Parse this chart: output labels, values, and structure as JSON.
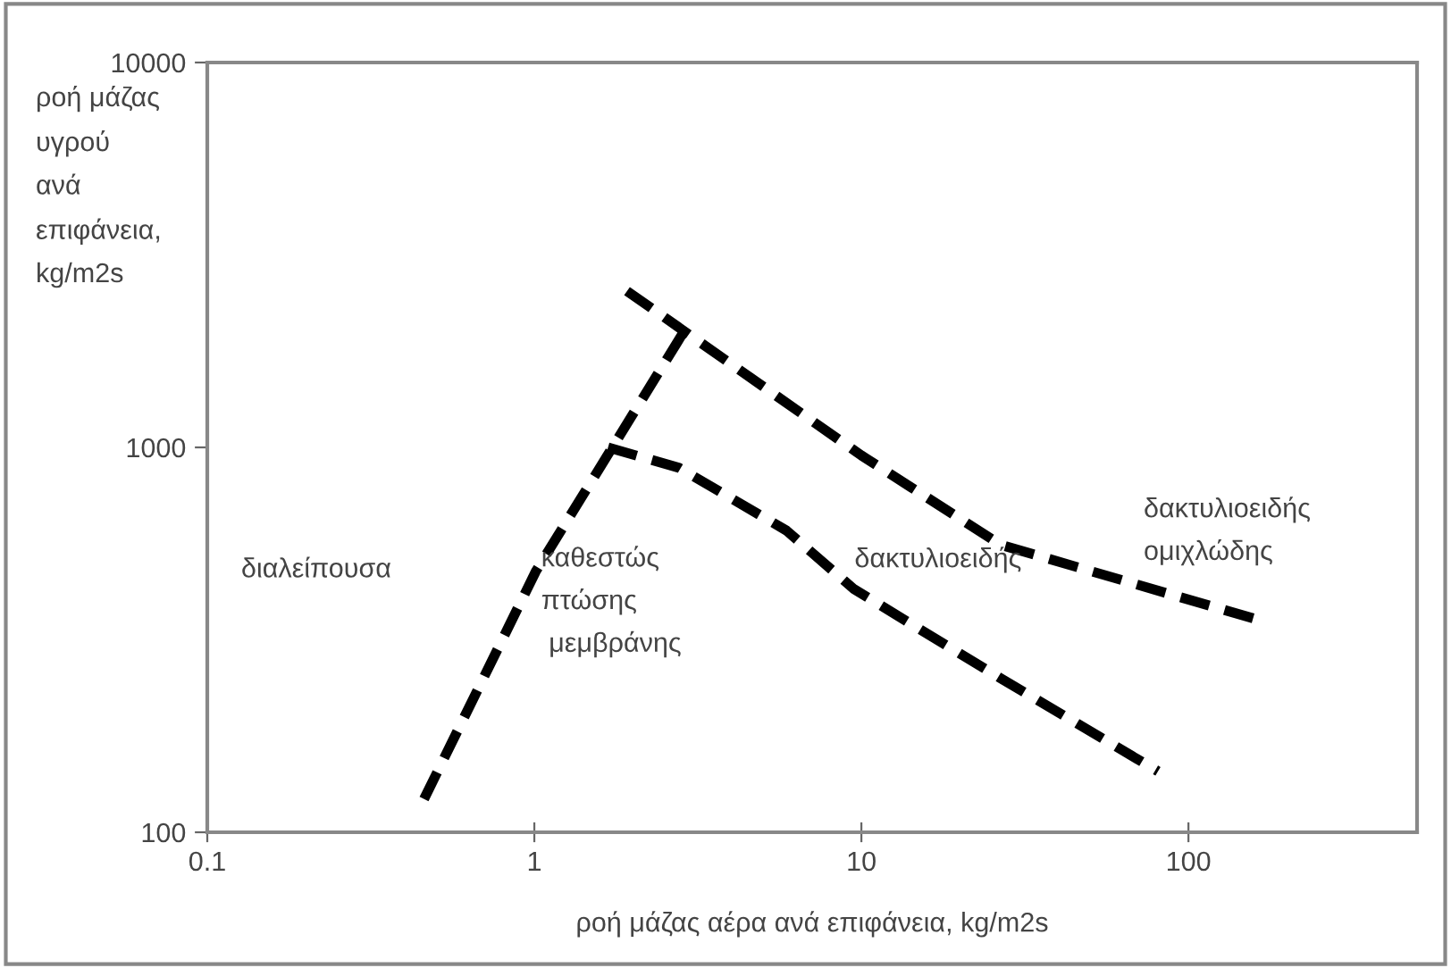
{
  "chart_data": {
    "type": "line",
    "xlabel": "ροή μάζας αέρα ανά επιφάνεια, kg/m2s",
    "ylabel": "ροή μάζας\nυγρού\nανά\nεπιφάνεια,\nkg/m2s",
    "log": "xy",
    "xlim": [
      0.1,
      500
    ],
    "xticks": [
      0.1,
      1,
      10,
      100
    ],
    "ylim": [
      100,
      10000
    ],
    "yticks": [
      100,
      1000,
      10000
    ],
    "grid": false,
    "legend": false,
    "marker": "none",
    "line_style": "dashed",
    "series": [
      {
        "color": "#000000",
        "x": [
          0.46,
          1.01,
          2.88
        ],
        "values": [
          122,
          476,
          2013
        ]
      },
      {
        "color": "#000000",
        "x": [
          1.92,
          10,
          26.7,
          170
        ],
        "values": [
          2548,
          953,
          558,
          353
        ]
      },
      {
        "color": "#000000",
        "x": [
          1.68,
          2.77,
          5.9,
          9.5,
          26.7,
          80.7
        ],
        "values": [
          1000,
          885,
          608,
          428,
          251,
          144
        ]
      }
    ],
    "annotations": [
      "διαλείπουσα",
      "καθεστώς\nπτώσης\n μεμβράνης",
      "δακτυλιοειδής",
      "δακτυλιοειδής\nομιχλώδης"
    ]
  }
}
